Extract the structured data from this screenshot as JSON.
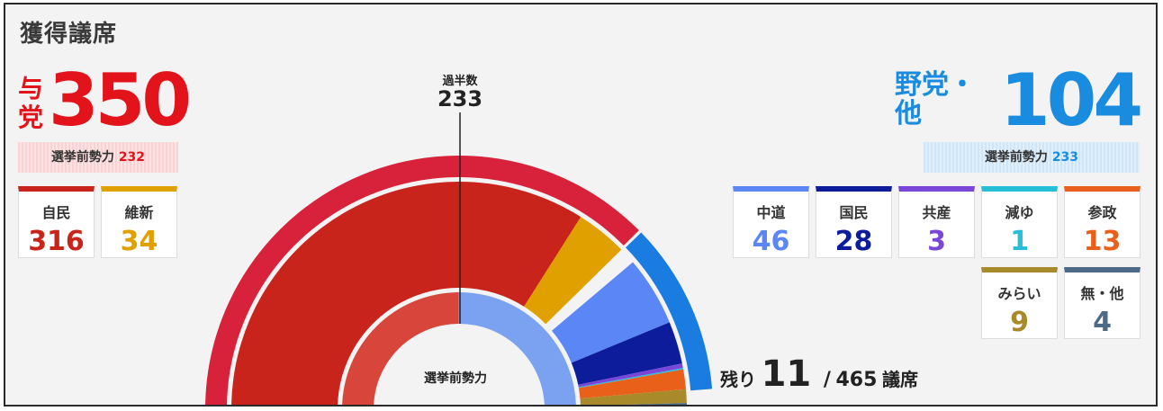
{
  "title": "獲得議席",
  "ruling": {
    "label": "与党",
    "total": "350",
    "pre_label": "選挙前勢力",
    "pre_value": "232",
    "color": "#e3131b",
    "parties": [
      {
        "name": "自民",
        "seats": "316",
        "color": "#c9241c"
      },
      {
        "name": "維新",
        "seats": "34",
        "color": "#e0a000"
      }
    ]
  },
  "opposition": {
    "label": "野党・他",
    "total": "104",
    "pre_label": "選挙前勢力",
    "pre_value": "233",
    "color": "#1a8ce0",
    "parties": [
      {
        "name": "中道",
        "seats": "46",
        "color": "#5b86f5"
      },
      {
        "name": "国民",
        "seats": "28",
        "color": "#0d1c9a"
      },
      {
        "name": "共産",
        "seats": "3",
        "color": "#7a46d8"
      },
      {
        "name": "減ゆ",
        "seats": "1",
        "color": "#27bfd8"
      },
      {
        "name": "参政",
        "seats": "13",
        "color": "#e9601b"
      },
      {
        "name": "みらい",
        "seats": "9",
        "color": "#a98a2a"
      },
      {
        "name": "無・他",
        "seats": "4",
        "color": "#4f6a88"
      }
    ]
  },
  "majority": {
    "label": "過半数",
    "value": "233"
  },
  "center_label": "選挙前勢力",
  "remaining": {
    "label": "残り",
    "value": "11",
    "separator": "/",
    "total": "465",
    "unit": "議席"
  },
  "chart_data": {
    "type": "pie",
    "layout": "semicircle",
    "total_seats": 465,
    "majority": 233,
    "outer_ring": [
      {
        "name": "与党",
        "value": 350,
        "color": "#d8223b"
      },
      {
        "name": "野党・他",
        "value": 104,
        "color": "#1a7be0"
      },
      {
        "name": "残り",
        "value": 11,
        "color": "#f3f3f3"
      }
    ],
    "middle_ring": [
      {
        "name": "自民",
        "value": 316,
        "color": "#c9241c"
      },
      {
        "name": "維新",
        "value": 34,
        "color": "#e0a000"
      },
      {
        "name": "",
        "value": 11,
        "color": "#f3f3f3"
      },
      {
        "name": "中道",
        "value": 46,
        "color": "#5b86f5"
      },
      {
        "name": "国民",
        "value": 28,
        "color": "#0d1c9a"
      },
      {
        "name": "共産",
        "value": 3,
        "color": "#7a46d8"
      },
      {
        "name": "減ゆ",
        "value": 1,
        "color": "#27bfd8"
      },
      {
        "name": "参政",
        "value": 13,
        "color": "#e9601b"
      },
      {
        "name": "みらい",
        "value": 9,
        "color": "#a98a2a"
      },
      {
        "name": "無・他",
        "value": 4,
        "color": "#4f6a88"
      }
    ],
    "inner_ring_pre_election": [
      {
        "name": "与党",
        "value": 232,
        "color": "#d8453a"
      },
      {
        "name": "維新",
        "value": 0,
        "color": "#e0a000"
      },
      {
        "name": "野党・他",
        "value": 233,
        "color": "#7aa2f0"
      }
    ]
  }
}
